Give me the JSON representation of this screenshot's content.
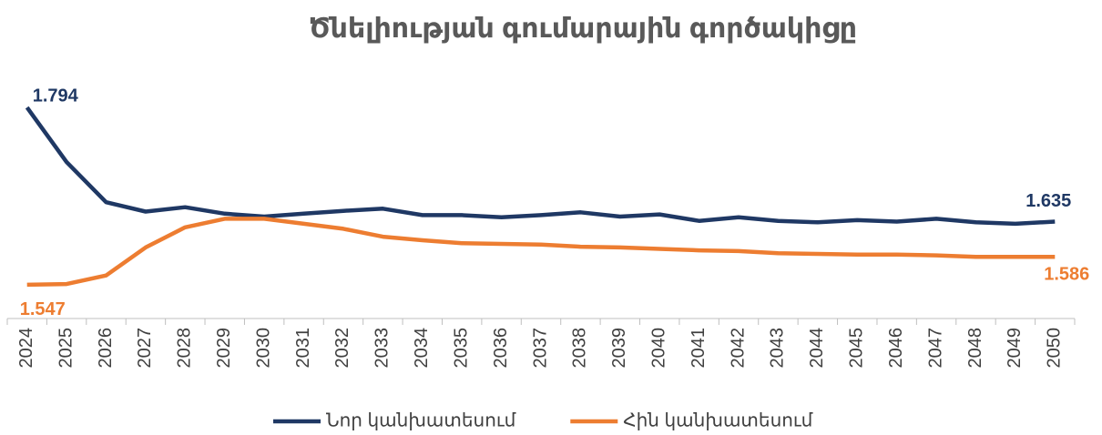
{
  "chart_data": {
    "type": "line",
    "title": "Ծնելիության գումարային գործակիցը",
    "categories": [
      "2024",
      "2025",
      "2026",
      "2027",
      "2028",
      "2029",
      "2030",
      "2031",
      "2032",
      "2033",
      "2034",
      "2035",
      "2036",
      "2037",
      "2038",
      "2039",
      "2040",
      "2041",
      "2042",
      "2043",
      "2044",
      "2045",
      "2046",
      "2047",
      "2048",
      "2049",
      "2050"
    ],
    "series": [
      {
        "name": "Նոր կանխատեսում",
        "color": "#1f3864",
        "values": [
          1.794,
          1.718,
          1.662,
          1.649,
          1.655,
          1.646,
          1.642,
          1.646,
          1.65,
          1.653,
          1.644,
          1.644,
          1.641,
          1.644,
          1.648,
          1.642,
          1.645,
          1.636,
          1.641,
          1.636,
          1.634,
          1.637,
          1.635,
          1.639,
          1.634,
          1.632,
          1.635
        ]
      },
      {
        "name": "Հին կանխատեսում",
        "color": "#ed7d31",
        "values": [
          1.547,
          1.548,
          1.56,
          1.599,
          1.627,
          1.639,
          1.639,
          1.632,
          1.625,
          1.614,
          1.609,
          1.605,
          1.604,
          1.603,
          1.6,
          1.599,
          1.597,
          1.595,
          1.594,
          1.591,
          1.59,
          1.589,
          1.589,
          1.588,
          1.586,
          1.586,
          1.586
        ]
      }
    ],
    "ylim": [
      1.5,
      1.82
    ],
    "legend": "bottom"
  }
}
